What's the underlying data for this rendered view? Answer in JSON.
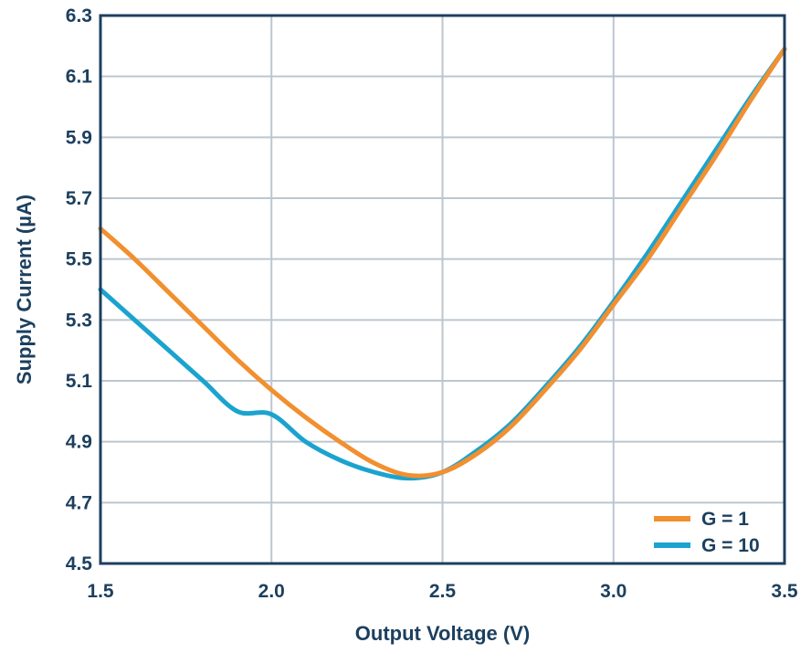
{
  "chart_data": {
    "type": "line",
    "title": "",
    "xlabel": "Output Voltage (V)",
    "ylabel": "Supply Current (µA)",
    "xlim": [
      1.5,
      3.5
    ],
    "ylim": [
      4.5,
      6.3
    ],
    "xticks": [
      "1.5",
      "2.0",
      "2.5",
      "3.0",
      "3.5"
    ],
    "yticks": [
      "4.5",
      "4.7",
      "4.9",
      "5.1",
      "5.3",
      "5.5",
      "5.7",
      "5.9",
      "6.1",
      "6.3"
    ],
    "grid": true,
    "legend_position": "bottom-right",
    "series": [
      {
        "name": "G = 1",
        "color": "#f28f2f",
        "x": [
          1.5,
          1.6,
          1.7,
          1.8,
          1.9,
          2.0,
          2.1,
          2.2,
          2.3,
          2.4,
          2.5,
          2.6,
          2.7,
          2.8,
          2.9,
          3.0,
          3.1,
          3.2,
          3.3,
          3.4,
          3.5
        ],
        "y": [
          5.6,
          5.5,
          5.39,
          5.28,
          5.17,
          5.07,
          4.98,
          4.9,
          4.83,
          4.79,
          4.8,
          4.86,
          4.95,
          5.07,
          5.2,
          5.35,
          5.5,
          5.67,
          5.84,
          6.02,
          6.19
        ]
      },
      {
        "name": "G = 10",
        "color": "#1ba3cf",
        "x": [
          1.5,
          1.6,
          1.7,
          1.8,
          1.9,
          2.0,
          2.1,
          2.2,
          2.3,
          2.4,
          2.5,
          2.6,
          2.7,
          2.8,
          2.9,
          3.0,
          3.1,
          3.2,
          3.3,
          3.4,
          3.5
        ],
        "y": [
          5.4,
          5.3,
          5.2,
          5.1,
          5.0,
          4.99,
          4.9,
          4.84,
          4.8,
          4.78,
          4.8,
          4.87,
          4.96,
          5.08,
          5.21,
          5.36,
          5.52,
          5.69,
          5.86,
          6.03,
          6.19
        ]
      }
    ]
  }
}
